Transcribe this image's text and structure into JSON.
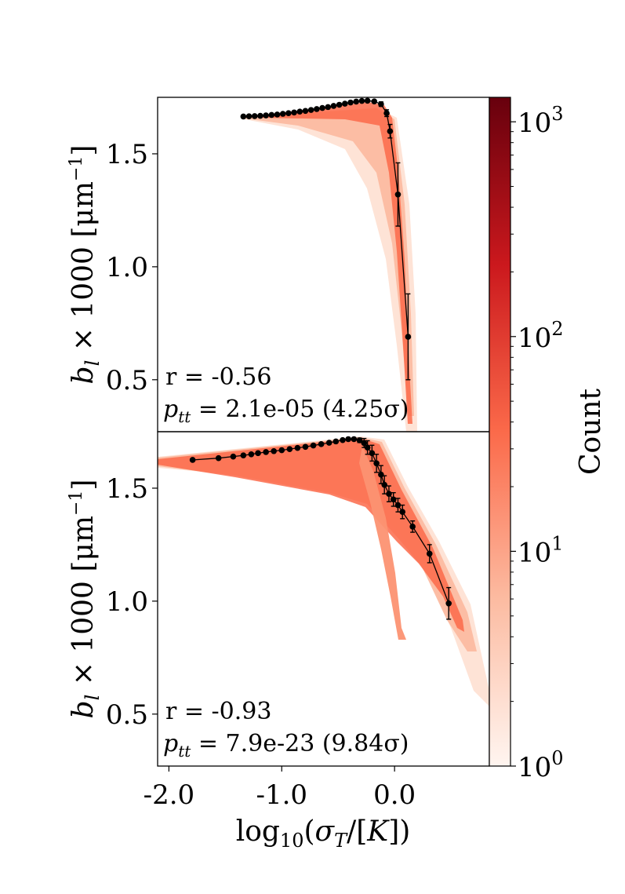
{
  "chart_data": [
    {
      "panel": "top",
      "type": "scatter",
      "render": "2d-histogram-with-binned-line",
      "ylabel": "b_l × 1000 [μm⁻¹]",
      "ylabel_parts": {
        "b": "b",
        "sub": "l",
        "rest": " × 1000 [μm",
        "sup": "−1",
        "close": "]"
      },
      "xlim": [
        -2.1,
        0.84
      ],
      "ylim": [
        0.27,
        1.75
      ],
      "yticks": [
        {
          "v": 0.5,
          "label": "0.5"
        },
        {
          "v": 1.0,
          "label": "1.0"
        },
        {
          "v": 1.5,
          "label": "1.5"
        }
      ],
      "annotations": {
        "r": "r = -0.56",
        "p_symbol": "p",
        "p_sub": "tt",
        "p_value": " = 2.1e-05 (4.25σ)"
      },
      "binned_points": [
        {
          "x": -1.34,
          "y": 1.665,
          "err": 0.0
        },
        {
          "x": -1.29,
          "y": 1.666,
          "err": 0.0
        },
        {
          "x": -1.24,
          "y": 1.667,
          "err": 0.0
        },
        {
          "x": -1.19,
          "y": 1.668,
          "err": 0.0
        },
        {
          "x": -1.14,
          "y": 1.67,
          "err": 0.0
        },
        {
          "x": -1.09,
          "y": 1.672,
          "err": 0.0
        },
        {
          "x": -1.04,
          "y": 1.674,
          "err": 0.0
        },
        {
          "x": -0.99,
          "y": 1.677,
          "err": 0.0
        },
        {
          "x": -0.94,
          "y": 1.68,
          "err": 0.0
        },
        {
          "x": -0.89,
          "y": 1.683,
          "err": 0.0
        },
        {
          "x": -0.84,
          "y": 1.687,
          "err": 0.0
        },
        {
          "x": -0.79,
          "y": 1.69,
          "err": 0.0
        },
        {
          "x": -0.74,
          "y": 1.694,
          "err": 0.0
        },
        {
          "x": -0.69,
          "y": 1.698,
          "err": 0.0
        },
        {
          "x": -0.64,
          "y": 1.703,
          "err": 0.0
        },
        {
          "x": -0.59,
          "y": 1.707,
          "err": 0.0
        },
        {
          "x": -0.54,
          "y": 1.712,
          "err": 0.0
        },
        {
          "x": -0.49,
          "y": 1.717,
          "err": 0.0
        },
        {
          "x": -0.44,
          "y": 1.722,
          "err": 0.0
        },
        {
          "x": -0.39,
          "y": 1.727,
          "err": 0.0
        },
        {
          "x": -0.34,
          "y": 1.731,
          "err": 0.0
        },
        {
          "x": -0.29,
          "y": 1.734,
          "err": 0.0
        },
        {
          "x": -0.24,
          "y": 1.735,
          "err": 0.0
        },
        {
          "x": -0.18,
          "y": 1.732,
          "err": 0.005
        },
        {
          "x": -0.12,
          "y": 1.72,
          "err": 0.01
        },
        {
          "x": -0.07,
          "y": 1.68,
          "err": 0.015
        },
        {
          "x": -0.04,
          "y": 1.6,
          "err": 0.03
        },
        {
          "x": 0.03,
          "y": 1.32,
          "err": 0.14
        },
        {
          "x": 0.12,
          "y": 0.69,
          "err": 0.19
        }
      ]
    },
    {
      "panel": "bottom",
      "type": "scatter",
      "render": "2d-histogram-with-binned-line",
      "xlabel": "log10(σT/[K])",
      "xlabel_parts": {
        "log": "log",
        "sub10": "10",
        "open": "(",
        "sigma": "σ",
        "subT": "T",
        "mid": "/[",
        "K": "K",
        "close": "])"
      },
      "ylabel": "b_l × 1000 [μm⁻¹]",
      "ylabel_parts": {
        "b": "b",
        "sub": "l",
        "rest": " × 1000 [μm",
        "sup": "−1",
        "close": "]"
      },
      "xlim": [
        -2.1,
        0.84
      ],
      "ylim": [
        0.27,
        1.75
      ],
      "xticks": [
        {
          "v": -2.0,
          "label": "-2.0"
        },
        {
          "v": -1.0,
          "label": "-1.0"
        },
        {
          "v": 0.0,
          "label": "0.0"
        }
      ],
      "yticks": [
        {
          "v": 0.5,
          "label": "0.5"
        },
        {
          "v": 1.0,
          "label": "1.0"
        },
        {
          "v": 1.5,
          "label": "1.5"
        }
      ],
      "annotations": {
        "r": "r = -0.93",
        "p_symbol": "p",
        "p_sub": "tt",
        "p_value": " = 7.9e-23 (9.84σ)"
      },
      "binned_points": [
        {
          "x": -1.79,
          "y": 1.625,
          "err": 0.0
        },
        {
          "x": -1.56,
          "y": 1.633,
          "err": 0.0
        },
        {
          "x": -1.43,
          "y": 1.64,
          "err": 0.0
        },
        {
          "x": -1.34,
          "y": 1.645,
          "err": 0.0
        },
        {
          "x": -1.27,
          "y": 1.65,
          "err": 0.0
        },
        {
          "x": -1.21,
          "y": 1.655,
          "err": 0.0
        },
        {
          "x": -1.14,
          "y": 1.66,
          "err": 0.0
        },
        {
          "x": -1.07,
          "y": 1.664,
          "err": 0.0
        },
        {
          "x": -1.0,
          "y": 1.668,
          "err": 0.0
        },
        {
          "x": -0.93,
          "y": 1.673,
          "err": 0.0
        },
        {
          "x": -0.86,
          "y": 1.678,
          "err": 0.0
        },
        {
          "x": -0.79,
          "y": 1.683,
          "err": 0.0
        },
        {
          "x": -0.72,
          "y": 1.689,
          "err": 0.0
        },
        {
          "x": -0.65,
          "y": 1.695,
          "err": 0.0
        },
        {
          "x": -0.58,
          "y": 1.701,
          "err": 0.0
        },
        {
          "x": -0.52,
          "y": 1.707,
          "err": 0.0
        },
        {
          "x": -0.46,
          "y": 1.713,
          "err": 0.0
        },
        {
          "x": -0.41,
          "y": 1.717,
          "err": 0.0
        },
        {
          "x": -0.36,
          "y": 1.717,
          "err": 0.0
        },
        {
          "x": -0.31,
          "y": 1.712,
          "err": 0.01
        },
        {
          "x": -0.27,
          "y": 1.7,
          "err": 0.02
        },
        {
          "x": -0.24,
          "y": 1.68,
          "err": 0.03
        },
        {
          "x": -0.2,
          "y": 1.655,
          "err": 0.035
        },
        {
          "x": -0.16,
          "y": 1.61,
          "err": 0.04
        },
        {
          "x": -0.12,
          "y": 1.56,
          "err": 0.04
        },
        {
          "x": -0.09,
          "y": 1.515,
          "err": 0.04
        },
        {
          "x": -0.05,
          "y": 1.475,
          "err": 0.035
        },
        {
          "x": -0.01,
          "y": 1.45,
          "err": 0.03
        },
        {
          "x": 0.03,
          "y": 1.425,
          "err": 0.03
        },
        {
          "x": 0.07,
          "y": 1.395,
          "err": 0.03
        },
        {
          "x": 0.16,
          "y": 1.33,
          "err": 0.025
        },
        {
          "x": 0.31,
          "y": 1.21,
          "err": 0.04
        },
        {
          "x": 0.48,
          "y": 0.99,
          "err": 0.07
        }
      ]
    }
  ],
  "colorbar": {
    "label": "Count",
    "scale": "log",
    "range": [
      1,
      1300
    ],
    "ticks": [
      {
        "v": 1,
        "base": "10",
        "exp": "0"
      },
      {
        "v": 10,
        "base": "10",
        "exp": "1"
      },
      {
        "v": 100,
        "base": "10",
        "exp": "2"
      },
      {
        "v": 1000,
        "base": "10",
        "exp": "3"
      }
    ],
    "colors": {
      "low": "#fff5f0",
      "mid_low": "#fcbba1",
      "mid": "#fb6a4a",
      "mid_high": "#cb181d",
      "high": "#67000d"
    }
  }
}
